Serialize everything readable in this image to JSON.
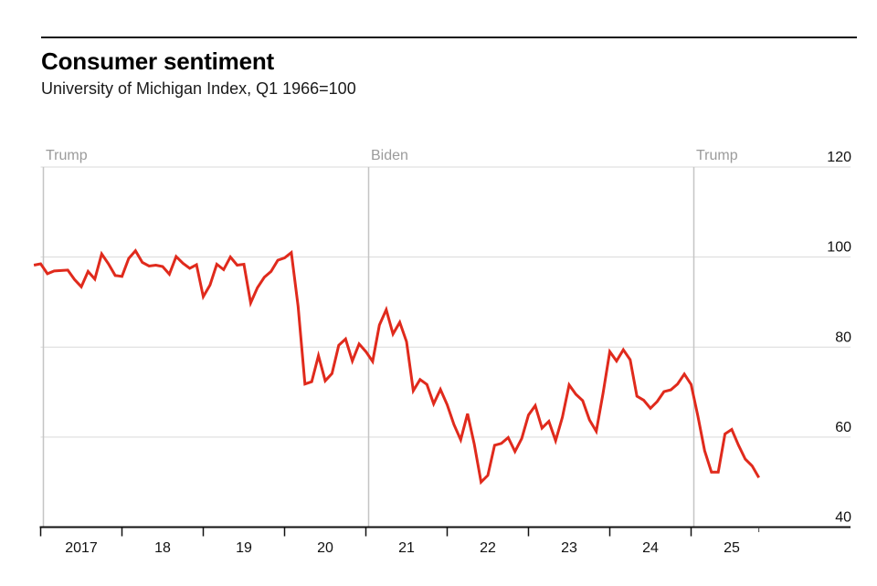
{
  "header": {
    "title": "Consumer sentiment",
    "subtitle": "University of Michigan Index, Q1 1966=100"
  },
  "chart_data": {
    "type": "line",
    "title": "Consumer sentiment",
    "subtitle": "University of Michigan Index, Q1 1966=100",
    "series": [
      {
        "name": "University of Michigan consumer sentiment index",
        "start": "2016-12",
        "frequency": "monthly",
        "values": [
          98.2,
          98.5,
          96.3,
          96.9,
          97.0,
          97.1,
          95.0,
          93.4,
          96.8,
          95.1,
          100.7,
          98.5,
          95.9,
          95.7,
          99.7,
          101.4,
          98.8,
          98.0,
          98.2,
          97.9,
          96.2,
          100.1,
          98.6,
          97.5,
          98.3,
          91.2,
          93.8,
          98.4,
          97.2,
          100.0,
          98.2,
          98.4,
          89.8,
          93.2,
          95.5,
          96.8,
          99.3,
          99.8,
          101.0,
          89.1,
          71.8,
          72.3,
          78.1,
          72.5,
          74.1,
          80.4,
          81.8,
          76.9,
          80.7,
          79.0,
          76.8,
          84.9,
          88.3,
          82.9,
          85.5,
          81.2,
          70.3,
          72.8,
          71.7,
          67.4,
          70.6,
          67.2,
          62.8,
          59.4,
          65.2,
          58.4,
          50.0,
          51.5,
          58.2,
          58.6,
          59.9,
          56.8,
          59.7,
          64.9,
          67.0,
          62.0,
          63.5,
          59.2,
          64.4,
          71.6,
          69.5,
          68.1,
          63.8,
          61.3,
          69.7,
          79.0,
          76.9,
          79.4,
          77.2,
          69.1,
          68.2,
          66.4,
          67.9,
          70.1,
          70.5,
          71.8,
          74.0,
          71.7,
          64.7,
          57.0,
          52.2,
          52.2,
          60.7,
          61.7,
          58.2,
          55.1,
          53.6,
          51.0
        ]
      }
    ],
    "x_axis": {
      "tick_years": [
        2017,
        2018,
        2019,
        2020,
        2021,
        2022,
        2023,
        2024,
        2025
      ],
      "tick_labels": [
        "2017",
        "18",
        "19",
        "20",
        "21",
        "22",
        "23",
        "24",
        "25"
      ],
      "end_of_data_tick": "2025-11"
    },
    "y_axis": {
      "ticks": [
        40,
        60,
        80,
        100,
        120
      ],
      "range": [
        40,
        120
      ],
      "side": "right"
    },
    "annotations": [
      {
        "label": "Trump",
        "start": "2017-01"
      },
      {
        "label": "Biden",
        "start": "2021-01"
      },
      {
        "label": "Trump",
        "start": "2025-01"
      }
    ],
    "grid": true,
    "legend": false,
    "colors": {
      "line": "#e02a1c",
      "grid": "#d9d9d9",
      "axis": "#111111",
      "tick_label": "#111111",
      "annotation_line": "#c5c5c5",
      "annotation_label": "#9b9b9b"
    }
  }
}
